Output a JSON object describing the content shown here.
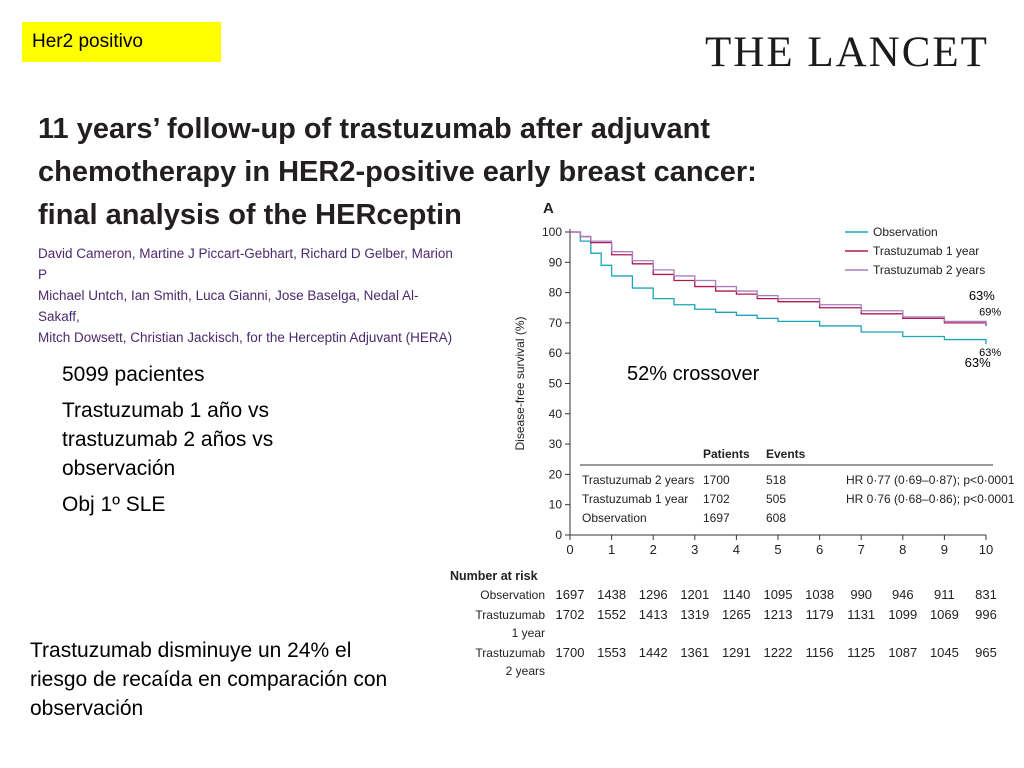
{
  "badge": "Her2 positivo",
  "journal": "THE LANCET",
  "article_title": "11 years’ follow-up of trastuzumab after adjuvant chemotherapy in HER2-positive early breast cancer: final analysis of the HERceptin",
  "authors": [
    "David Cameron, Martine J Piccart-Gebhart, Richard D Gelber, Marion P",
    "Michael Untch, Ian Smith, Luca Gianni, Jose Baselga, Nedal Al-Sakaff,",
    "Mitch Dowsett, Christian Jackisch, for the Herceptin Adjuvant (HERA)"
  ],
  "facts": [
    "5099 pacientes",
    "Trastuzumab 1 año vs trastuzumab 2 años vs observación",
    "Obj 1º SLE"
  ],
  "conclusion": "Trastuzumab disminuye un 24% el riesgo de recaída en comparación con observación",
  "crossover_note": "52% crossover",
  "chart_data": {
    "type": "line",
    "panel": "A",
    "title": "",
    "xlabel": "",
    "ylabel": "Disease-free survival (%)",
    "xlim": [
      0,
      10
    ],
    "ylim": [
      0,
      100
    ],
    "xticks": [
      0,
      1,
      2,
      3,
      4,
      5,
      6,
      7,
      8,
      9,
      10
    ],
    "yticks": [
      0,
      10,
      20,
      30,
      40,
      50,
      60,
      70,
      80,
      90,
      100
    ],
    "legend_position": "top-right",
    "series": [
      {
        "name": "Observation",
        "color": "#1aa5b8",
        "x": [
          0,
          0.25,
          0.5,
          0.75,
          1,
          1.5,
          2,
          2.5,
          3,
          3.5,
          4,
          4.5,
          5,
          6,
          7,
          8,
          9,
          10
        ],
        "y": [
          100,
          97,
          93,
          89,
          85.5,
          81.5,
          78,
          76,
          74.5,
          73.5,
          72.5,
          71.5,
          70.5,
          69,
          67,
          65.5,
          64.5,
          63
        ]
      },
      {
        "name": "Trastuzumab 1 year",
        "color": "#b0184e",
        "x": [
          0,
          0.25,
          0.5,
          1,
          1.5,
          2,
          2.5,
          3,
          3.5,
          4,
          4.5,
          5,
          6,
          7,
          8,
          9,
          10
        ],
        "y": [
          100,
          98.5,
          96.5,
          92.5,
          89.5,
          86,
          84,
          82,
          80.5,
          79.5,
          78,
          77,
          75,
          73,
          71.5,
          70,
          69
        ]
      },
      {
        "name": "Trastuzumab 2 years",
        "color": "#a87dc6",
        "x": [
          0,
          0.25,
          0.5,
          1,
          1.5,
          2,
          2.5,
          3,
          3.5,
          4,
          4.5,
          5,
          6,
          7,
          8,
          9,
          10
        ],
        "y": [
          100,
          98.5,
          97,
          93.5,
          90.5,
          87.5,
          85.5,
          84,
          82,
          80.5,
          79,
          78,
          76,
          74,
          72,
          70.5,
          69.5
        ]
      }
    ],
    "curve_labels": [
      {
        "text": "63%",
        "x": 9.9,
        "y": 77.5,
        "size": 13
      },
      {
        "text": "69%",
        "x": 10.1,
        "y": 72.5,
        "size": 11
      },
      {
        "text": "63%",
        "x": 10.1,
        "y": 59,
        "size": 11
      },
      {
        "text": "63%",
        "x": 9.8,
        "y": 55.5,
        "size": 13
      }
    ],
    "summary_table": {
      "headers": [
        "",
        "Patients",
        "Events",
        ""
      ],
      "rows": [
        [
          "Trastuzumab 2 years",
          "1700",
          "518",
          "HR 0·77 (0·69–0·87); p<0·0001"
        ],
        [
          "Trastuzumab 1 year",
          "1702",
          "505",
          "HR 0·76 (0·68–0·86); p<0·0001"
        ],
        [
          "Observation",
          "1697",
          "608",
          ""
        ]
      ]
    },
    "number_at_risk": {
      "heading": "Number at risk",
      "rows": [
        {
          "label": [
            "Observation"
          ],
          "values": [
            1697,
            1438,
            1296,
            1201,
            1140,
            1095,
            1038,
            990,
            946,
            911,
            831
          ]
        },
        {
          "label": [
            "Trastuzumab",
            "1 year"
          ],
          "values": [
            1702,
            1552,
            1413,
            1319,
            1265,
            1213,
            1179,
            1131,
            1099,
            1069,
            996
          ]
        },
        {
          "label": [
            "Trastuzumab",
            "2 years"
          ],
          "values": [
            1700,
            1553,
            1442,
            1361,
            1291,
            1222,
            1156,
            1125,
            1087,
            1045,
            965
          ]
        }
      ]
    }
  }
}
